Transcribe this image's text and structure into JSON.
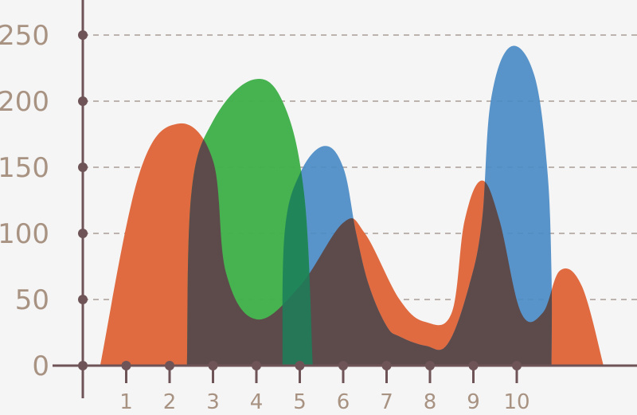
{
  "chart_data": {
    "type": "area",
    "title": "",
    "xlabel": "",
    "ylabel": "",
    "x_ticks": [
      "1",
      "2",
      "3",
      "4",
      "5",
      "6",
      "7",
      "8",
      "9",
      "10"
    ],
    "y_ticks": [
      "0",
      "50",
      "100",
      "150",
      "200",
      "250"
    ],
    "xlim": [
      0,
      12.4
    ],
    "ylim": [
      0,
      250
    ],
    "grid": true,
    "legend": "none",
    "colors": {
      "axis": "#6e5457",
      "marker": "#6e5457",
      "grid": "#bdb3ae",
      "tick_text": "#a89282",
      "background": "#f5f5f5"
    },
    "series": [
      {
        "color": "#e06b40",
        "opacity": 1,
        "values": [
          [
            0.4,
            0
          ],
          [
            1.3,
            145
          ],
          [
            2.2,
            183
          ],
          [
            3.0,
            155
          ],
          [
            3.3,
            70
          ],
          [
            4.0,
            35
          ],
          [
            5.0,
            60
          ],
          [
            6.0,
            108
          ],
          [
            6.5,
            100
          ],
          [
            7.3,
            50
          ],
          [
            7.9,
            33
          ],
          [
            8.5,
            40
          ],
          [
            8.8,
            110
          ],
          [
            9.2,
            140
          ],
          [
            9.6,
            110
          ],
          [
            10.1,
            40
          ],
          [
            10.6,
            40
          ],
          [
            11.0,
            72
          ],
          [
            11.5,
            60
          ],
          [
            12.0,
            0
          ]
        ]
      },
      {
        "color": "#4b8cc6",
        "opacity": 0.93,
        "values": [
          [
            4.6,
            0
          ],
          [
            4.65,
            100
          ],
          [
            5.0,
            145
          ],
          [
            5.55,
            166
          ],
          [
            6.0,
            150
          ],
          [
            6.3,
            100
          ],
          [
            6.6,
            60
          ],
          [
            7.0,
            30
          ],
          [
            7.3,
            22
          ],
          [
            7.9,
            15
          ],
          [
            8.4,
            16
          ],
          [
            8.9,
            60
          ],
          [
            9.2,
            110
          ],
          [
            9.4,
            200
          ],
          [
            9.85,
            241
          ],
          [
            10.4,
            220
          ],
          [
            10.7,
            150
          ],
          [
            10.8,
            70
          ],
          [
            10.8,
            0
          ]
        ]
      },
      {
        "color": "#40af4a",
        "opacity": 0.97,
        "values": [
          [
            2.4,
            0
          ],
          [
            2.5,
            130
          ],
          [
            3.0,
            185
          ],
          [
            3.9,
            216
          ],
          [
            4.6,
            200
          ],
          [
            5.1,
            130
          ],
          [
            5.3,
            0
          ]
        ]
      }
    ],
    "dark_overlay_color": "#5d4a4a"
  }
}
